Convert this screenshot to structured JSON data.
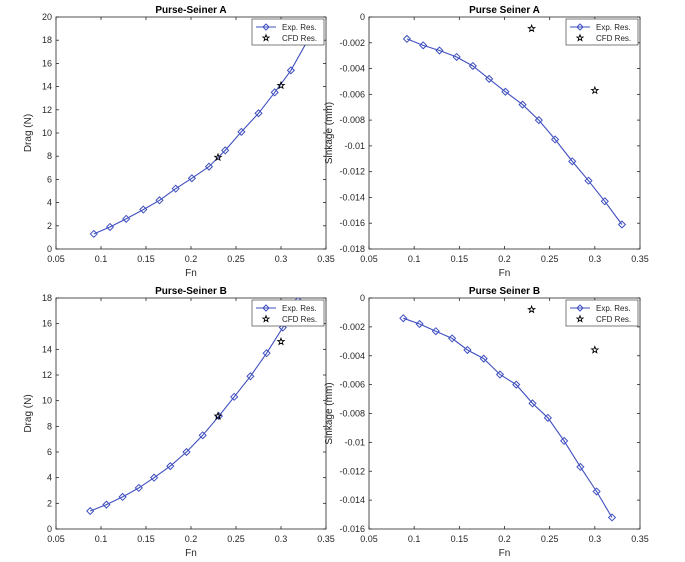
{
  "chart_data": [
    {
      "type": "line",
      "title": "Purse-Seiner A",
      "xlabel": "Fn",
      "ylabel": "Drag (N)",
      "xlim": [
        0.05,
        0.35
      ],
      "ylim": [
        0,
        20
      ],
      "xticks": [
        "0.05",
        "0.1",
        "0.15",
        "0.2",
        "0.25",
        "0.3",
        "0.35"
      ],
      "yticks": [
        "0",
        "2",
        "4",
        "6",
        "8",
        "10",
        "12",
        "14",
        "16",
        "18",
        "20"
      ],
      "legend": "top-right",
      "grid": false,
      "series": [
        {
          "name": "Exp. Res.",
          "marker": "diamond",
          "line": true,
          "color": "#3f4fbf",
          "x": [
            0.092,
            0.11,
            0.128,
            0.147,
            0.165,
            0.183,
            0.201,
            0.22,
            0.238,
            0.256,
            0.275,
            0.293,
            0.311,
            0.329
          ],
          "y": [
            1.3,
            1.9,
            2.6,
            3.4,
            4.2,
            5.2,
            6.1,
            7.1,
            8.5,
            10.1,
            11.7,
            13.5,
            15.4,
            17.9
          ]
        },
        {
          "name": "CFD Res.",
          "marker": "star",
          "line": false,
          "color": "#000000",
          "x": [
            0.23,
            0.3
          ],
          "y": [
            7.9,
            14.1
          ]
        }
      ]
    },
    {
      "type": "line",
      "title": "Purse Seiner A",
      "xlabel": "Fn",
      "ylabel": "Sinkage (mm)",
      "xlim": [
        0.05,
        0.35
      ],
      "ylim": [
        -0.018,
        0
      ],
      "xticks": [
        "0.05",
        "0.1",
        "0.15",
        "0.2",
        "0.25",
        "0.3",
        "0.35"
      ],
      "yticks": [
        "0",
        "-0.002",
        "-0.004",
        "-0.006",
        "-0.008",
        "-0.01",
        "-0.012",
        "-0.014",
        "-0.016",
        "-0.018"
      ],
      "legend": "top-right",
      "grid": false,
      "series": [
        {
          "name": "Exp. Res.",
          "marker": "diamond",
          "line": true,
          "color": "#3f4fbf",
          "x": [
            0.092,
            0.11,
            0.128,
            0.147,
            0.165,
            0.183,
            0.201,
            0.22,
            0.238,
            0.256,
            0.275,
            0.293,
            0.311,
            0.33
          ],
          "y": [
            -0.0017,
            -0.0022,
            -0.0026,
            -0.0031,
            -0.0038,
            -0.0048,
            -0.0058,
            -0.0068,
            -0.008,
            -0.0095,
            -0.0112,
            -0.0127,
            -0.0143,
            -0.0161
          ]
        },
        {
          "name": "CFD Res.",
          "marker": "star",
          "line": false,
          "color": "#000000",
          "x": [
            0.23,
            0.3
          ],
          "y": [
            -0.0009,
            -0.0057
          ]
        }
      ]
    },
    {
      "type": "line",
      "title": "Purse-Seiner B",
      "xlabel": "Fn",
      "ylabel": "Drag (N)",
      "xlim": [
        0.05,
        0.35
      ],
      "ylim": [
        0,
        18
      ],
      "xticks": [
        "0.05",
        "0.1",
        "0.15",
        "0.2",
        "0.25",
        "0.3",
        "0.35"
      ],
      "yticks": [
        "0",
        "2",
        "4",
        "6",
        "8",
        "10",
        "12",
        "14",
        "16",
        "18"
      ],
      "legend": "top-right",
      "grid": false,
      "series": [
        {
          "name": "Exp. Res.",
          "marker": "diamond",
          "line": true,
          "color": "#3f4fbf",
          "x": [
            0.088,
            0.106,
            0.124,
            0.142,
            0.159,
            0.177,
            0.195,
            0.213,
            0.231,
            0.248,
            0.266,
            0.284,
            0.302,
            0.319
          ],
          "y": [
            1.4,
            1.9,
            2.5,
            3.2,
            4.0,
            4.9,
            6.0,
            7.3,
            8.8,
            10.3,
            11.9,
            13.7,
            15.7,
            17.8
          ]
        },
        {
          "name": "CFD Res.",
          "marker": "star",
          "line": false,
          "color": "#000000",
          "x": [
            0.23,
            0.3
          ],
          "y": [
            8.8,
            14.6
          ]
        }
      ]
    },
    {
      "type": "line",
      "title": "Purse Seiner B",
      "xlabel": "Fn",
      "ylabel": "Sinkage (mm)",
      "xlim": [
        0.05,
        0.35
      ],
      "ylim": [
        -0.016,
        0
      ],
      "xticks": [
        "0.05",
        "0.1",
        "0.15",
        "0.2",
        "0.25",
        "0.3",
        "0.35"
      ],
      "yticks": [
        "0",
        "-0.002",
        "-0.004",
        "-0.006",
        "-0.008",
        "-0.01",
        "-0.012",
        "-0.014",
        "-0.016"
      ],
      "legend": "top-right",
      "grid": false,
      "series": [
        {
          "name": "Exp. Res.",
          "marker": "diamond",
          "line": true,
          "color": "#3f4fbf",
          "x": [
            0.088,
            0.106,
            0.124,
            0.142,
            0.159,
            0.177,
            0.195,
            0.213,
            0.231,
            0.248,
            0.266,
            0.284,
            0.302,
            0.319
          ],
          "y": [
            -0.0014,
            -0.0018,
            -0.0023,
            -0.0028,
            -0.0036,
            -0.0042,
            -0.0053,
            -0.006,
            -0.0073,
            -0.0083,
            -0.0099,
            -0.0117,
            -0.0134,
            -0.0152
          ]
        },
        {
          "name": "CFD Res.",
          "marker": "star",
          "line": false,
          "color": "#000000",
          "x": [
            0.23,
            0.3
          ],
          "y": [
            -0.0008,
            -0.0036
          ]
        }
      ]
    }
  ]
}
